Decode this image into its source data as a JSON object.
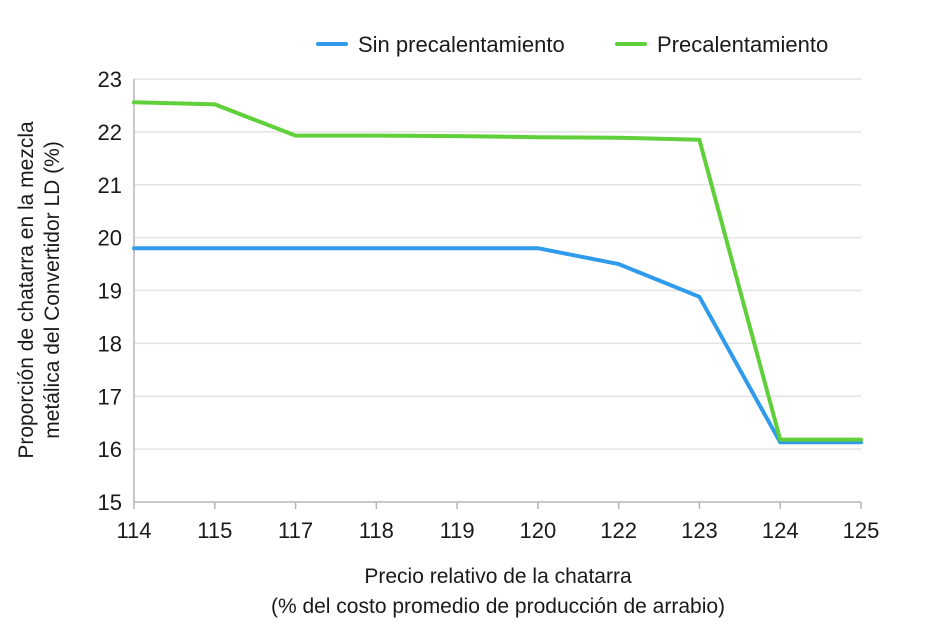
{
  "chart_data": {
    "type": "line",
    "xlabel_lines": [
      "Precio relativo de la chatarra",
      "(% del costo promedio de producción de arrabio)"
    ],
    "ylabel_lines": [
      "Proporción de chatarra en la mezcla",
      "metálica del Convertidor LD (%)"
    ],
    "categories": [
      "114",
      "115",
      "117",
      "118",
      "119",
      "120",
      "122",
      "123",
      "124",
      "125"
    ],
    "ylim": [
      15,
      23
    ],
    "yticks": [
      15,
      16,
      17,
      18,
      19,
      20,
      21,
      22,
      23
    ],
    "grid": true,
    "legend_position": "top",
    "series": [
      {
        "name": "Sin precalentamiento",
        "color": "#2f9bea",
        "values": [
          19.8,
          19.8,
          19.8,
          19.8,
          19.8,
          19.8,
          19.5,
          18.88,
          16.13,
          16.13
        ]
      },
      {
        "name": "Precalentamiento",
        "color": "#5fcf3a",
        "values": [
          22.56,
          22.52,
          21.93,
          21.93,
          21.92,
          21.9,
          21.89,
          21.85,
          16.18,
          16.18
        ]
      }
    ]
  }
}
